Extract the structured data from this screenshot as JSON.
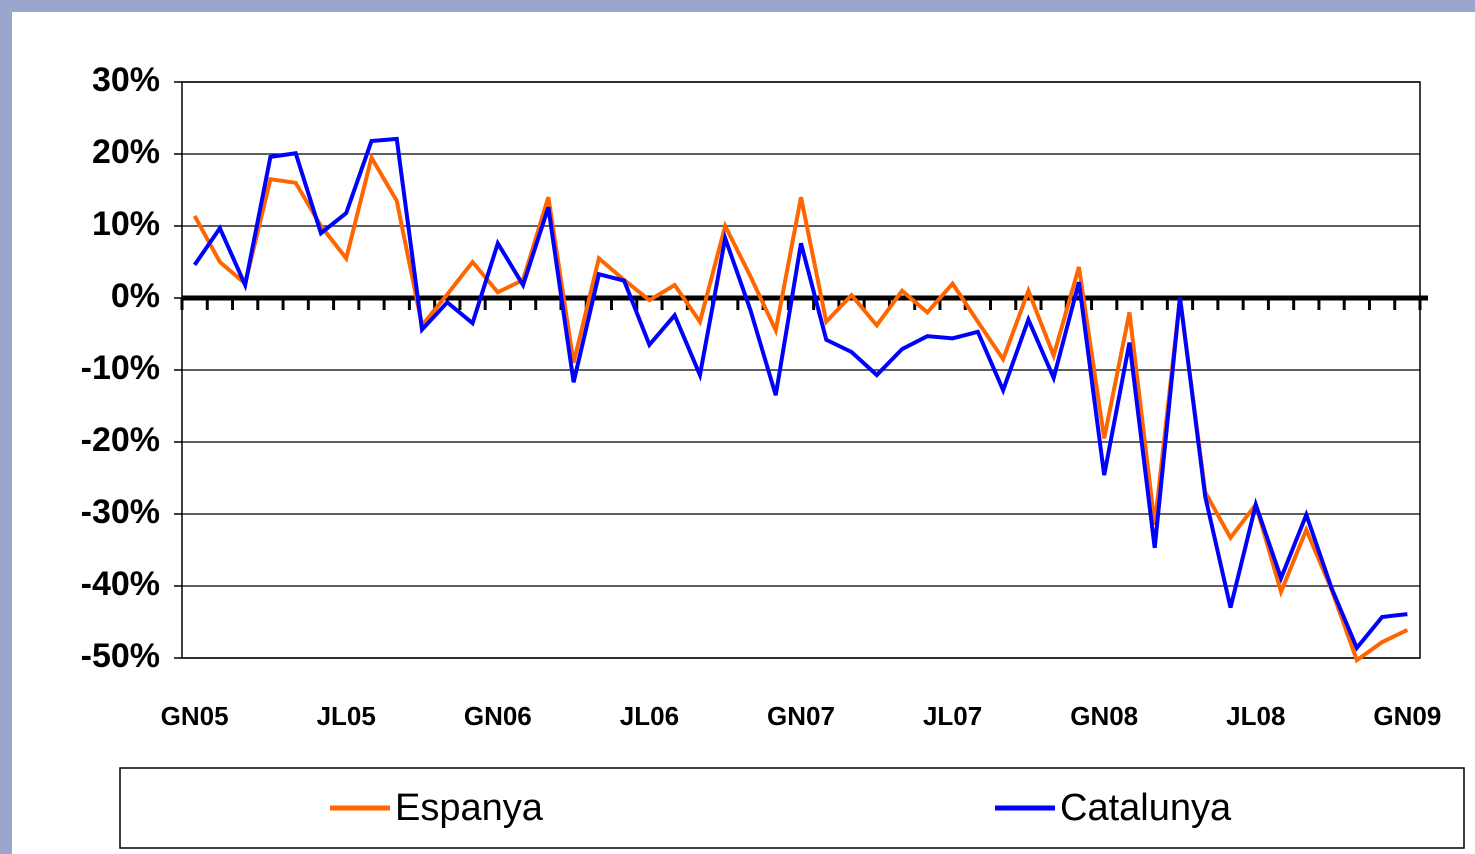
{
  "chart_data": {
    "type": "line",
    "categories": [
      "GN05",
      null,
      null,
      null,
      null,
      null,
      "JL05",
      null,
      null,
      null,
      null,
      null,
      "GN06",
      null,
      null,
      null,
      null,
      null,
      "JL06",
      null,
      null,
      null,
      null,
      null,
      "GN07",
      null,
      null,
      null,
      null,
      null,
      "JL07",
      null,
      null,
      null,
      null,
      null,
      "GN08",
      null,
      null,
      null,
      null,
      null,
      "JL08",
      null,
      null,
      null,
      null,
      null,
      "GN09"
    ],
    "series": [
      {
        "name": "Espanya",
        "color": "#ff6600",
        "values": [
          11.4,
          5,
          2,
          16.5,
          16,
          10,
          5.5,
          19.5,
          13.5,
          -3.8,
          0.5,
          5,
          0.8,
          2.5,
          14,
          -9,
          5.5,
          2.5,
          -0.3,
          1.8,
          -3.3,
          10,
          3,
          -4.5,
          14,
          -3.3,
          0.4,
          -3.8,
          1,
          -2,
          2,
          -3.3,
          -8.5,
          1,
          -8,
          4.3,
          -19.5,
          -2,
          -31.5,
          0,
          -27,
          -33.3,
          -28.7,
          -40.8,
          -32.2,
          -40.5,
          -50.3,
          -47.8,
          -46.1
        ]
      },
      {
        "name": "Catalunya",
        "color": "#0000ff",
        "values": [
          4.6,
          9.7,
          1.8,
          19.6,
          20.1,
          9,
          11.8,
          21.8,
          22.1,
          -4.4,
          -0.6,
          -3.5,
          7.6,
          1.8,
          12.6,
          -11.7,
          3.3,
          2.4,
          -6.5,
          -2.4,
          -10.7,
          8.3,
          -1.7,
          -13.5,
          7.6,
          -5.8,
          -7.5,
          -10.7,
          -7.1,
          -5.3,
          -5.6,
          -4.7,
          -12.8,
          -3,
          -11.1,
          2.2,
          -24.6,
          -6.2,
          -34.7,
          0.1,
          -27.6,
          -43,
          -28.7,
          -38.9,
          -30.1,
          -40.3,
          -48.6,
          -44.3,
          -43.9
        ]
      }
    ],
    "ylim": [
      -50,
      30
    ],
    "yticks": [
      {
        "value": -50,
        "label": "-50%"
      },
      {
        "value": -40,
        "label": "-40%"
      },
      {
        "value": -30,
        "label": "-30%"
      },
      {
        "value": -20,
        "label": "-20%"
      },
      {
        "value": -10,
        "label": "-10%"
      },
      {
        "value": 0,
        "label": "0%"
      },
      {
        "value": 10,
        "label": "10%"
      },
      {
        "value": 20,
        "label": "20%"
      },
      {
        "value": 30,
        "label": "30%"
      }
    ],
    "grid": true,
    "legend": "bottom"
  }
}
